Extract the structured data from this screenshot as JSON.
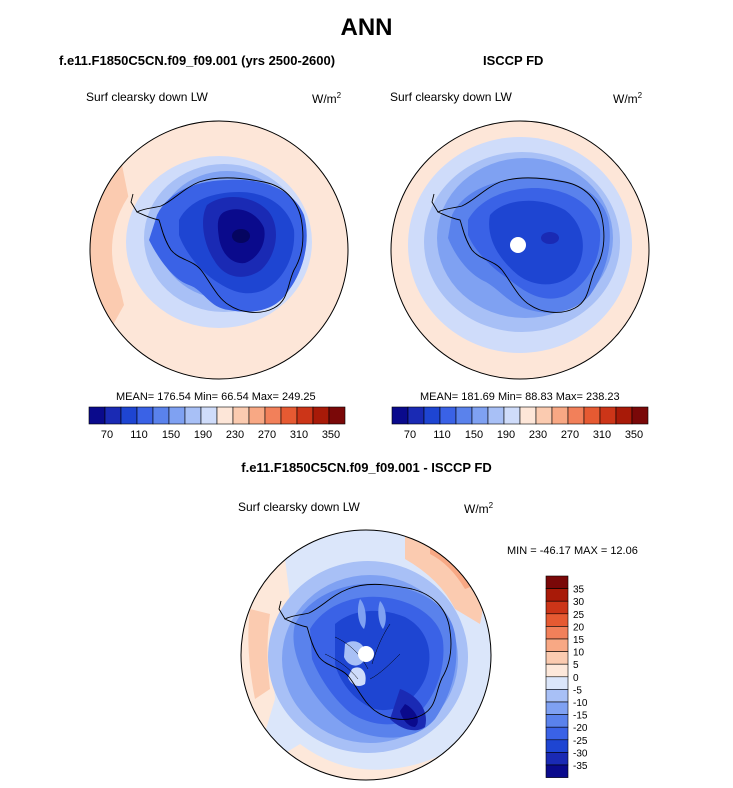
{
  "main_title": "ANN",
  "colors": {
    "scale_main": [
      "#0a0a8c",
      "#1a2ab4",
      "#1e45d2",
      "#3a62e6",
      "#5a82ec",
      "#7fa1f2",
      "#a8c0f6",
      "#cfdcfa",
      "#fde6d8",
      "#fbcbb0",
      "#f8a884",
      "#f2805a",
      "#e65a32",
      "#cc3518",
      "#a81a08",
      "#7a0808"
    ],
    "scale_diff": [
      "#0a0a8c",
      "#1a2ab4",
      "#1e45d2",
      "#3a62e6",
      "#5a82ec",
      "#7fa1f2",
      "#a8c0f6",
      "#dbe6fa",
      "#fde8da",
      "#fbcbb0",
      "#f8a884",
      "#f2805a",
      "#e65a32",
      "#cc3518",
      "#a81a08",
      "#7a0808"
    ]
  },
  "panels": [
    {
      "name": "model",
      "title": "f.e11.F1850C5CN.f09_f09.001 (yrs 2500-2600)",
      "variable": "Surf clearsky down LW",
      "units": "W/m",
      "units_exp": "2",
      "stats": "MEAN= 176.54  Min=  66.54  Max= 249.25"
    },
    {
      "name": "obs",
      "title": "ISCCP FD",
      "variable": "Surf clearsky down LW",
      "units": "W/m",
      "units_exp": "2",
      "stats": "MEAN= 181.69  Min=  88.83  Max= 238.23"
    },
    {
      "name": "diff",
      "title": "f.e11.F1850C5CN.f09_f09.001 - ISCCP FD",
      "variable": "Surf clearsky down LW",
      "units": "W/m",
      "units_exp": "2",
      "stats": "MIN = -46.17 MAX =  12.06"
    }
  ],
  "chart_data": [
    {
      "type": "heatmap",
      "projection": "south polar stereographic",
      "title": "f.e11.F1850C5CN.f09_f09.001 (yrs 2500-2600)",
      "variable": "Surf clearsky down LW",
      "units": "W/m2",
      "mean": 176.54,
      "min": 66.54,
      "max": 249.25,
      "contour_levels": [
        70,
        90,
        110,
        130,
        150,
        170,
        190,
        210,
        230,
        250,
        270,
        290,
        310,
        330,
        350
      ],
      "colorbar_tick_labels": [
        "70",
        "110",
        "150",
        "190",
        "230",
        "270",
        "310",
        "350"
      ]
    },
    {
      "type": "heatmap",
      "projection": "south polar stereographic",
      "title": "ISCCP FD",
      "variable": "Surf clearsky down LW",
      "units": "W/m2",
      "mean": 181.69,
      "min": 88.83,
      "max": 238.23,
      "contour_levels": [
        70,
        90,
        110,
        130,
        150,
        170,
        190,
        210,
        230,
        250,
        270,
        290,
        310,
        330,
        350
      ],
      "colorbar_tick_labels": [
        "70",
        "110",
        "150",
        "190",
        "230",
        "270",
        "310",
        "350"
      ]
    },
    {
      "type": "heatmap",
      "projection": "south polar stereographic",
      "title": "f.e11.F1850C5CN.f09_f09.001 - ISCCP FD",
      "variable": "Surf clearsky down LW",
      "units": "W/m2",
      "min": -46.17,
      "max": 12.06,
      "contour_levels": [
        -35,
        -30,
        -25,
        -20,
        -15,
        -10,
        -5,
        0,
        5,
        10,
        15,
        20,
        25,
        30,
        35
      ],
      "colorbar_tick_labels": [
        "35",
        "30",
        "25",
        "20",
        "15",
        "10",
        "5",
        "0",
        "-5",
        "-10",
        "-15",
        "-20",
        "-25",
        "-30",
        "-35"
      ]
    }
  ]
}
